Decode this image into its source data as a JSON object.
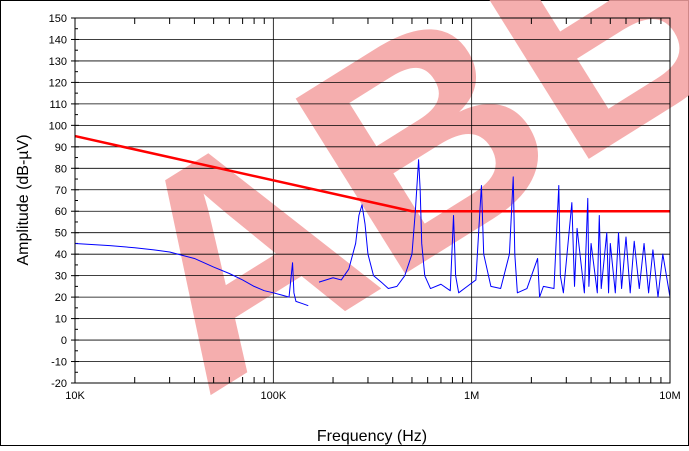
{
  "chart_data": {
    "type": "line",
    "title": "",
    "xlabel": "Frequency (Hz)",
    "ylabel": "Amplitude (dB-µV)",
    "x_scale": "log",
    "xlim": [
      10000,
      10000000
    ],
    "ylim": [
      -20,
      150
    ],
    "x_ticks": [
      {
        "value": 10000,
        "label": "10K"
      },
      {
        "value": 100000,
        "label": "100K"
      },
      {
        "value": 1000000,
        "label": "1M"
      },
      {
        "value": 10000000,
        "label": "10M"
      }
    ],
    "y_ticks": [
      {
        "value": -20,
        "label": "-20"
      },
      {
        "value": -10,
        "label": "-10"
      },
      {
        "value": 0,
        "label": "0"
      },
      {
        "value": 10,
        "label": "10"
      },
      {
        "value": 20,
        "label": "20"
      },
      {
        "value": 30,
        "label": "30"
      },
      {
        "value": 40,
        "label": "40"
      },
      {
        "value": 50,
        "label": "50"
      },
      {
        "value": 60,
        "label": "60"
      },
      {
        "value": 70,
        "label": "70"
      },
      {
        "value": 80,
        "label": "80"
      },
      {
        "value": 90,
        "label": "90"
      },
      {
        "value": 100,
        "label": "100"
      },
      {
        "value": 110,
        "label": "110"
      },
      {
        "value": 120,
        "label": "120"
      },
      {
        "value": 130,
        "label": "130"
      },
      {
        "value": 140,
        "label": "140"
      },
      {
        "value": 150,
        "label": "150"
      }
    ],
    "grid": true,
    "series": [
      {
        "color": "#ff0000",
        "x": [
          10000,
          500000,
          10000000
        ],
        "y": [
          95,
          60,
          60
        ]
      },
      {
        "color": "#0000ff",
        "x": [
          10000,
          15000,
          20000,
          25000,
          30000,
          40000,
          50000,
          60000,
          70000,
          80000,
          90000,
          100000,
          110000,
          120000,
          125000,
          127000,
          130000,
          140000,
          150000
        ],
        "y": [
          45,
          44,
          43,
          42,
          41,
          38,
          34,
          31,
          28,
          25,
          23,
          22,
          21,
          20,
          36,
          22,
          18,
          17,
          16
        ]
      },
      {
        "color": "#0000ff",
        "x": [
          170000,
          200000,
          220000,
          240000,
          260000,
          270000,
          280000,
          290000,
          300000,
          320000,
          350000,
          380000,
          420000,
          460000,
          500000,
          520000,
          540000,
          550000,
          560000,
          580000,
          620000,
          700000,
          780000,
          810000,
          830000,
          860000,
          950000,
          1050000,
          1100000,
          1120000,
          1150000,
          1250000,
          1400000,
          1550000,
          1620000,
          1650000,
          1700000,
          1900000,
          2150000,
          2200000,
          2300000,
          2600000,
          2750000,
          2800000,
          2900000,
          3200000,
          3300000,
          3400000,
          3700000,
          3850000,
          3900000,
          4000000,
          4300000,
          4400000,
          4500000,
          4800000,
          4900000,
          5000000,
          5300000,
          5500000,
          5700000,
          6000000,
          6300000,
          6600000,
          7000000,
          7400000,
          7800000,
          8200000,
          8700000,
          9200000,
          10000000
        ],
        "y": [
          27,
          29,
          28,
          33,
          45,
          58,
          63,
          54,
          40,
          30,
          27,
          24,
          25,
          30,
          40,
          60,
          84,
          70,
          45,
          30,
          24,
          26,
          23,
          58,
          30,
          22,
          25,
          28,
          60,
          72,
          40,
          25,
          24,
          40,
          76,
          40,
          22,
          24,
          38,
          20,
          25,
          24,
          72,
          30,
          22,
          64,
          25,
          52,
          22,
          66,
          25,
          45,
          22,
          58,
          24,
          50,
          22,
          45,
          22,
          50,
          24,
          48,
          22,
          46,
          24,
          45,
          22,
          42,
          20,
          40,
          20
        ]
      }
    ],
    "watermark": "ABBI"
  }
}
